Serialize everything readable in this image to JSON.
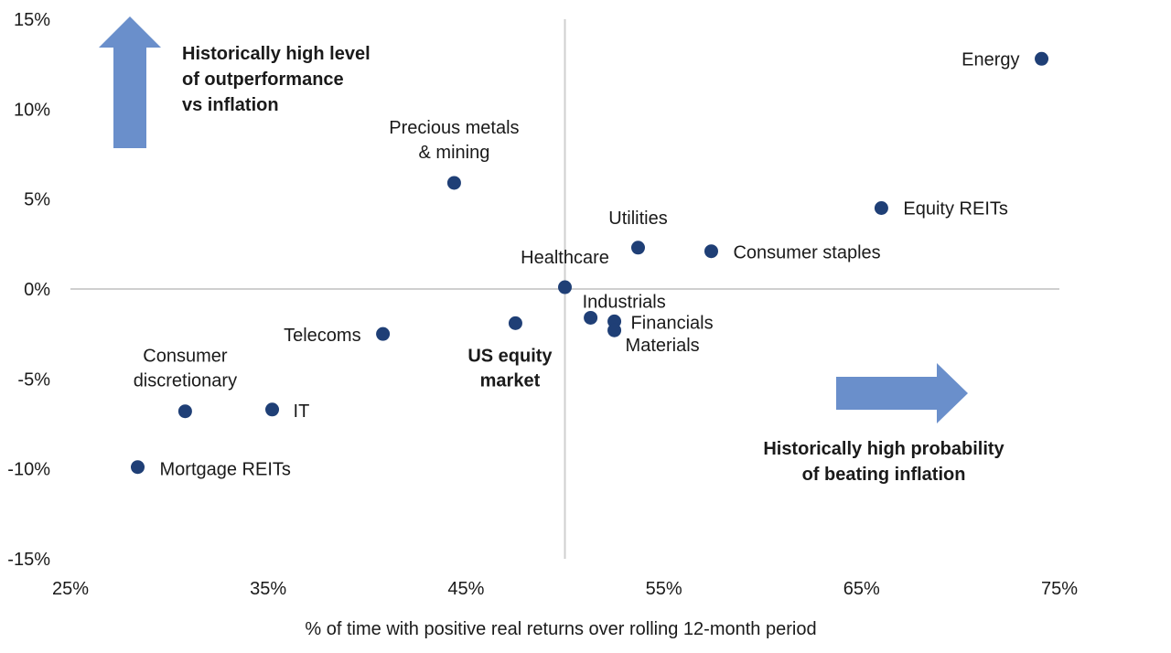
{
  "chart_data": {
    "type": "scatter",
    "title": "",
    "xlabel": "% of time with positive real returns over rolling 12-month period",
    "ylabel": "",
    "xlim": [
      25,
      75
    ],
    "ylim": [
      -15,
      15
    ],
    "x_ticks": [
      "25%",
      "35%",
      "45%",
      "55%",
      "65%",
      "75%"
    ],
    "y_ticks": [
      "15%",
      "10%",
      "5%",
      "0%",
      "-5%",
      "-10%",
      "-15%"
    ],
    "grid": false,
    "reference_lines": {
      "x": 50,
      "y": 0
    },
    "point_color": "#1f3f76",
    "highlight_color": "#1f3f76",
    "arrow_color": "#6a8fcb",
    "points": [
      {
        "label": [
          "Energy"
        ],
        "x": 74.1,
        "y": 12.8
      },
      {
        "label": [
          "Precious metals",
          "& mining"
        ],
        "x": 44.4,
        "y": 5.9
      },
      {
        "label": [
          "Equity REITs"
        ],
        "x": 66.0,
        "y": 4.5
      },
      {
        "label": [
          "Utilities"
        ],
        "x": 53.7,
        "y": 2.3
      },
      {
        "label": [
          "Consumer staples"
        ],
        "x": 57.4,
        "y": 2.1
      },
      {
        "label": [
          "Healthcare"
        ],
        "x": 50.0,
        "y": 0.1
      },
      {
        "label": [
          "Industrials"
        ],
        "x": 51.3,
        "y": -1.6
      },
      {
        "label": [
          "Financials"
        ],
        "x": 52.5,
        "y": -1.8
      },
      {
        "label": [
          "Materials"
        ],
        "x": 52.5,
        "y": -2.3
      },
      {
        "label": [
          "US equity",
          "market"
        ],
        "x": 47.5,
        "y": -1.9,
        "highlight": true
      },
      {
        "label": [
          "Telecoms"
        ],
        "x": 40.8,
        "y": -2.5
      },
      {
        "label": [
          "IT"
        ],
        "x": 35.2,
        "y": -6.7
      },
      {
        "label": [
          "Consumer",
          "discretionary"
        ],
        "x": 30.8,
        "y": -6.8
      },
      {
        "label": [
          "Mortgage REITs"
        ],
        "x": 28.4,
        "y": -9.9
      }
    ],
    "annotations": {
      "up": [
        "Historically high level",
        "of outperformance",
        "vs inflation"
      ],
      "right": [
        "Historically high probability",
        "of beating inflation"
      ]
    }
  }
}
